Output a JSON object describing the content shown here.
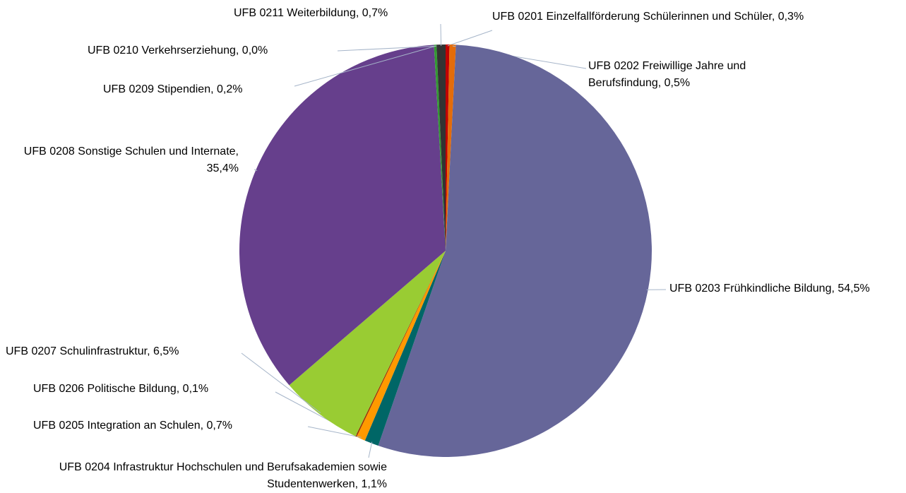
{
  "chart_data": {
    "type": "pie",
    "categories": [
      "UFB 0201 Einzelfallförderung Schülerinnen und Schüler",
      "UFB 0202 Freiwillige Jahre und Berufsfindung",
      "UFB 0203 Frühkindliche Bildung",
      "UFB 0204 Infrastruktur Hochschulen und Berufsakademien sowie Studentenwerken",
      "UFB 0205 Integration an Schulen",
      "UFB 0206 Politische Bildung",
      "UFB 0207 Schulinfrastruktur",
      "UFB 0208 Sonstige Schulen und Internate",
      "UFB 0209 Stipendien",
      "UFB 0210 Verkehrserziehung",
      "UFB 0211 Weiterbildung"
    ],
    "values": [
      0.3,
      0.5,
      54.5,
      1.1,
      0.7,
      0.1,
      6.5,
      35.4,
      0.2,
      0.0,
      0.7
    ],
    "value_labels": [
      "0,3%",
      "0,5%",
      "54,5%",
      "1,1%",
      "0,7%",
      "0,1%",
      "6,5%",
      "35,4%",
      "0,2%",
      "0,0%",
      "0,7%"
    ],
    "colors": [
      "#c00000",
      "#e46c0a",
      "#666699",
      "#006666",
      "#ff9900",
      "#993300",
      "#99cc33",
      "#663f8c",
      "#339933",
      "#bfbfbf",
      "#333333"
    ]
  }
}
